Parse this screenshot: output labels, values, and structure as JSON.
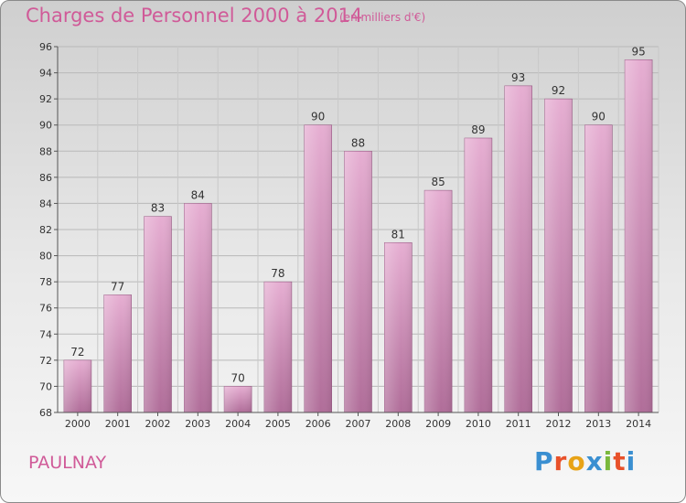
{
  "title": "Charges de Personnel 2000 à 2014",
  "subtitle": "(en milliers d'€)",
  "commune": "PAULNAY",
  "logo": {
    "text": "Proxiti",
    "colors": [
      "#3a8fd1",
      "#e8512a",
      "#e8a317",
      "#3a8fd1",
      "#7ab83c",
      "#e8512a",
      "#3a8fd1"
    ]
  },
  "colors": {
    "title": "#d05a98",
    "bar_top": "#e6aed2",
    "bar_bottom": "#b06d99"
  },
  "chart_data": {
    "type": "bar",
    "categories": [
      "2000",
      "2001",
      "2002",
      "2003",
      "2004",
      "2005",
      "2006",
      "2007",
      "2008",
      "2009",
      "2010",
      "2011",
      "2012",
      "2013",
      "2014"
    ],
    "values": [
      72,
      77,
      83,
      84,
      70,
      78,
      90,
      88,
      81,
      85,
      89,
      93,
      92,
      90,
      95
    ],
    "ylim": [
      68,
      96
    ],
    "yticks": [
      68,
      70,
      72,
      74,
      76,
      78,
      80,
      82,
      84,
      86,
      88,
      90,
      92,
      94,
      96
    ],
    "grid": true
  }
}
